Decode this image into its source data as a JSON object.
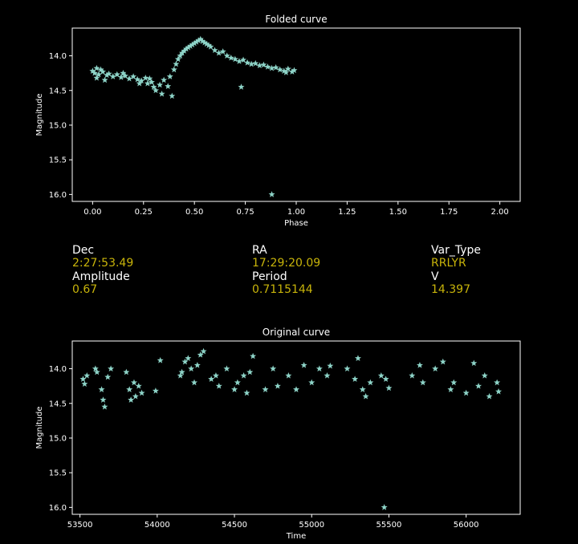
{
  "chart_data": [
    {
      "type": "scatter",
      "title": "Folded curve",
      "xlabel": "Phase",
      "ylabel": "Magnitude",
      "xlim": [
        -0.1,
        2.1
      ],
      "ylim": [
        16.1,
        13.6
      ],
      "y_inverted": true,
      "xticks": [
        "0.00",
        "0.25",
        "0.50",
        "0.75",
        "1.00",
        "1.25",
        "1.50",
        "1.75",
        "2.00"
      ],
      "xtick_values": [
        0,
        0.25,
        0.5,
        0.75,
        1.0,
        1.25,
        1.5,
        1.75,
        2.0
      ],
      "yticks": [
        "14.0",
        "14.5",
        "15.0",
        "15.5",
        "16.0"
      ],
      "ytick_values": [
        14.0,
        14.5,
        15.0,
        15.5,
        16.0
      ],
      "marker": "star",
      "color": "#8dd3c7",
      "grid": false,
      "series": [
        {
          "x": [
            0.0,
            0.01,
            0.02,
            0.03,
            0.04,
            0.05,
            0.07,
            0.08,
            0.1,
            0.12,
            0.14,
            0.16,
            0.18,
            0.2,
            0.22,
            0.24,
            0.26,
            0.27,
            0.29,
            0.3,
            0.31,
            0.33,
            0.35,
            0.37,
            0.38,
            0.4,
            0.41,
            0.42,
            0.43,
            0.44,
            0.45,
            0.46,
            0.47,
            0.48,
            0.49,
            0.5,
            0.51,
            0.52,
            0.53,
            0.54,
            0.55,
            0.56,
            0.57,
            0.58,
            0.6,
            0.62,
            0.64,
            0.66,
            0.68,
            0.7,
            0.72,
            0.74,
            0.76,
            0.78,
            0.8,
            0.82,
            0.84,
            0.86,
            0.88,
            0.9,
            0.92,
            0.94,
            0.96,
            0.98,
            0.99,
            0.02,
            0.06,
            0.15,
            0.23,
            0.28,
            0.34,
            0.39,
            0.73,
            0.88,
            0.95
          ],
          "y": [
            14.22,
            14.25,
            14.18,
            14.27,
            14.2,
            14.23,
            14.28,
            14.26,
            14.3,
            14.27,
            14.31,
            14.29,
            14.33,
            14.3,
            14.34,
            14.36,
            14.32,
            14.4,
            14.38,
            14.45,
            14.5,
            14.42,
            14.35,
            14.44,
            14.3,
            14.2,
            14.12,
            14.05,
            14.0,
            13.96,
            13.93,
            13.9,
            13.88,
            13.86,
            13.84,
            13.82,
            13.8,
            13.78,
            13.76,
            13.79,
            13.81,
            13.83,
            13.85,
            13.87,
            13.92,
            13.96,
            13.94,
            14.0,
            14.03,
            14.05,
            14.08,
            14.06,
            14.1,
            14.12,
            14.11,
            14.14,
            14.13,
            14.16,
            14.18,
            14.17,
            14.2,
            14.22,
            14.19,
            14.23,
            14.21,
            14.32,
            14.35,
            14.25,
            14.4,
            14.33,
            14.55,
            14.58,
            14.45,
            16.0,
            14.24
          ]
        }
      ]
    },
    {
      "type": "scatter",
      "title": "Original curve",
      "xlabel": "Time",
      "ylabel": "Magnitude",
      "xlim": [
        53450,
        56350
      ],
      "ylim": [
        16.1,
        13.6
      ],
      "y_inverted": true,
      "xticks": [
        "53500",
        "54000",
        "54500",
        "55000",
        "55500",
        "56000"
      ],
      "xtick_values": [
        53500,
        54000,
        54500,
        55000,
        55500,
        56000
      ],
      "yticks": [
        "14.0",
        "14.5",
        "15.0",
        "15.5",
        "16.0"
      ],
      "ytick_values": [
        14.0,
        14.5,
        15.0,
        15.5,
        16.0
      ],
      "marker": "star",
      "color": "#8dd3c7",
      "grid": false,
      "series": [
        {
          "x": [
            53520,
            53530,
            53545,
            53600,
            53610,
            53640,
            53650,
            53660,
            53680,
            53700,
            53800,
            53820,
            53830,
            53850,
            53860,
            53880,
            53900,
            53990,
            54020,
            54150,
            54160,
            54180,
            54200,
            54220,
            54240,
            54260,
            54280,
            54300,
            54350,
            54380,
            54400,
            54450,
            54500,
            54520,
            54560,
            54580,
            54600,
            54620,
            54700,
            54750,
            54780,
            54850,
            54900,
            54950,
            55000,
            55050,
            55100,
            55120,
            55230,
            55280,
            55300,
            55330,
            55350,
            55380,
            55450,
            55480,
            55500,
            55650,
            55700,
            55720,
            55800,
            55850,
            55900,
            55920,
            56000,
            56050,
            56080,
            56120,
            56150,
            56200,
            56210,
            55470
          ],
          "y": [
            14.15,
            14.22,
            14.1,
            14.0,
            14.05,
            14.3,
            14.45,
            14.55,
            14.12,
            14.0,
            14.05,
            14.3,
            14.45,
            14.2,
            14.4,
            14.25,
            14.35,
            14.32,
            13.88,
            14.1,
            14.05,
            13.9,
            13.85,
            14.0,
            14.2,
            13.95,
            13.8,
            13.75,
            14.15,
            14.1,
            14.25,
            14.0,
            14.3,
            14.2,
            14.1,
            14.35,
            14.05,
            13.82,
            14.3,
            14.0,
            14.25,
            14.1,
            14.3,
            13.95,
            14.2,
            14.0,
            14.1,
            13.96,
            14.0,
            14.15,
            13.85,
            14.3,
            14.4,
            14.2,
            14.1,
            14.15,
            14.28,
            14.1,
            13.95,
            14.2,
            14.0,
            13.9,
            14.3,
            14.2,
            14.35,
            13.92,
            14.25,
            14.1,
            14.4,
            14.2,
            14.33,
            16.0
          ]
        }
      ]
    }
  ],
  "info": {
    "dec_label": "Dec",
    "dec_value": "2:27:53.49",
    "ra_label": "RA",
    "ra_value": "17:29:20.09",
    "vartype_label": "Var_Type",
    "vartype_value": "RRLYR",
    "amplitude_label": "Amplitude",
    "amplitude_value": "0.67",
    "period_label": "Period",
    "period_value": "0.7115144",
    "v_label": "V",
    "v_value": "14.397"
  }
}
